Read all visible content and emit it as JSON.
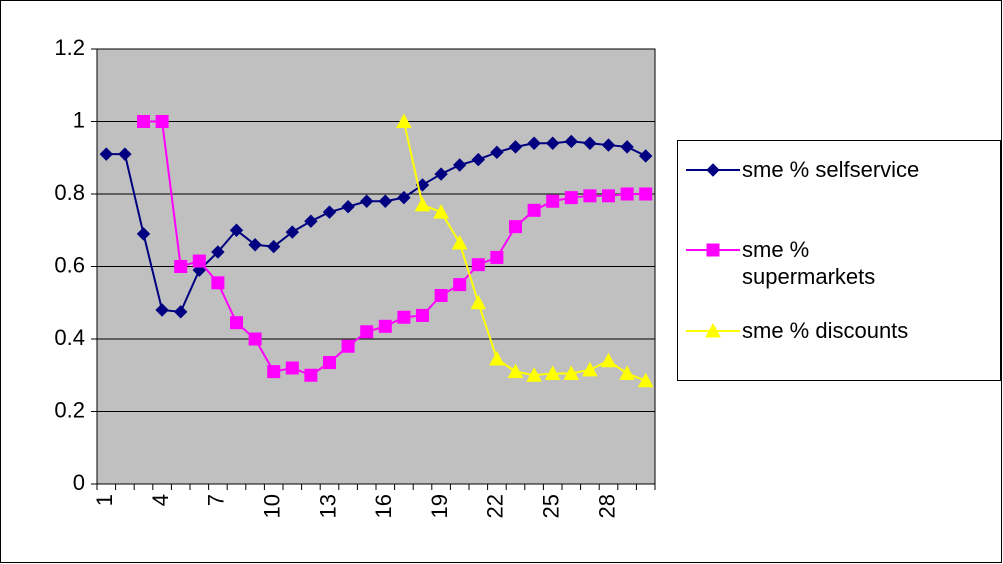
{
  "chart_data": {
    "type": "line",
    "categories": [
      "1",
      null,
      null,
      "4",
      null,
      null,
      "7",
      null,
      null,
      "10",
      null,
      null,
      "13",
      null,
      null,
      "16",
      null,
      null,
      "19",
      null,
      null,
      "22",
      null,
      null,
      "25",
      null,
      null,
      "28",
      null,
      null
    ],
    "series": [
      {
        "name": "sme % selfservice",
        "color": "#000080",
        "marker": "diamond",
        "values": [
          0.91,
          0.91,
          0.69,
          0.48,
          0.475,
          0.59,
          0.64,
          0.7,
          0.66,
          0.655,
          0.695,
          0.725,
          0.75,
          0.765,
          0.78,
          0.78,
          0.79,
          0.825,
          0.855,
          0.88,
          0.895,
          0.915,
          0.93,
          0.94,
          0.94,
          0.945,
          0.94,
          0.935,
          0.93,
          0.905
        ]
      },
      {
        "name": "sme % supermarkets",
        "color": "#ff00ff",
        "marker": "square",
        "values": [
          null,
          null,
          1.0,
          1.0,
          0.6,
          0.615,
          0.555,
          0.445,
          0.4,
          0.31,
          0.32,
          0.3,
          0.335,
          0.38,
          0.42,
          0.435,
          0.46,
          0.465,
          0.52,
          0.55,
          0.605,
          0.625,
          0.71,
          0.755,
          0.78,
          0.79,
          0.795,
          0.795,
          0.8,
          0.8
        ]
      },
      {
        "name": "sme % discounts",
        "color": "#ffff00",
        "marker": "triangle",
        "values": [
          null,
          null,
          null,
          null,
          null,
          null,
          null,
          null,
          null,
          null,
          null,
          null,
          null,
          null,
          null,
          null,
          1.0,
          0.77,
          0.75,
          0.665,
          0.5,
          0.345,
          0.31,
          0.3,
          0.305,
          0.305,
          0.315,
          0.34,
          0.305,
          0.285
        ]
      }
    ],
    "ylim": [
      0,
      1.2
    ],
    "yticks": [
      0,
      0.2,
      0.4,
      0.6,
      0.8,
      1,
      1.2
    ],
    "grid": true,
    "plot_background": "#c0c0c0",
    "legend": "right"
  }
}
